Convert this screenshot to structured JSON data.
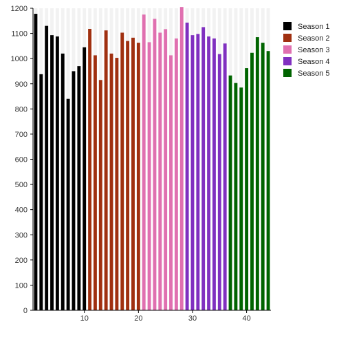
{
  "chart_data": {
    "type": "bar",
    "title": "",
    "xlabel": "",
    "ylabel": "",
    "ylim": [
      0,
      1200
    ],
    "xlim": [
      0.5,
      44.5
    ],
    "y_ticks": [
      0,
      100,
      200,
      300,
      400,
      500,
      600,
      700,
      800,
      900,
      1000,
      1100,
      1200
    ],
    "x_ticks": [
      10,
      20,
      30,
      40
    ],
    "legend_position": "right",
    "series": [
      {
        "name": "Season 1",
        "color": "#000000",
        "x": [
          1,
          2,
          3,
          4,
          5,
          6,
          7,
          8,
          9,
          10
        ],
        "values": [
          1178,
          938,
          1130,
          1093,
          1088,
          1020,
          840,
          950,
          970,
          1045
        ]
      },
      {
        "name": "Season 2",
        "color": "#a03010",
        "x": [
          11,
          12,
          13,
          14,
          15,
          16,
          17,
          18,
          19,
          20
        ],
        "values": [
          1118,
          1013,
          915,
          1112,
          1020,
          1003,
          1103,
          1070,
          1083,
          1063
        ]
      },
      {
        "name": "Season 3",
        "color": "#e070b0",
        "x": [
          21,
          22,
          23,
          24,
          25,
          26,
          27,
          28
        ],
        "values": [
          1175,
          1065,
          1158,
          1103,
          1117,
          1013,
          1080,
          1205
        ]
      },
      {
        "name": "Season 4",
        "color": "#8030c0",
        "x": [
          29,
          30,
          31,
          32,
          33,
          34,
          35,
          36
        ],
        "values": [
          1143,
          1093,
          1098,
          1125,
          1088,
          1080,
          1018,
          1060
        ]
      },
      {
        "name": "Season 5",
        "color": "#006400",
        "x": [
          37,
          38,
          39,
          40,
          41,
          42,
          43,
          44
        ],
        "values": [
          933,
          903,
          885,
          962,
          1023,
          1085,
          1063,
          1030
        ]
      }
    ]
  }
}
